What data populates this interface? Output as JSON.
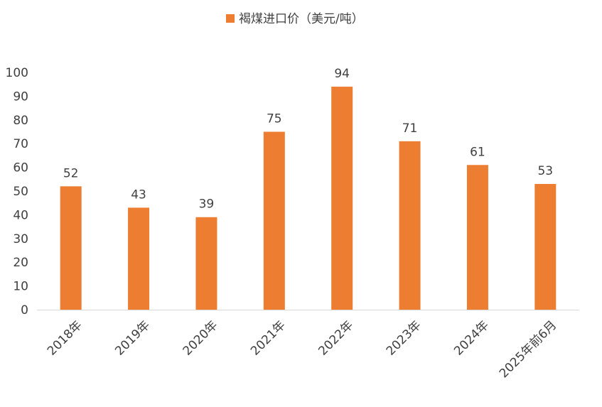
{
  "chart_data": {
    "type": "bar",
    "categories": [
      "2018年",
      "2019年",
      "2020年",
      "2021年",
      "2022年",
      "2023年",
      "2024年",
      "2025年前6月"
    ],
    "series": [
      {
        "name": "褐煤进口价（美元/吨）",
        "values": [
          52,
          43,
          39,
          75,
          94,
          71,
          61,
          53
        ],
        "color": "#ED7D31"
      }
    ],
    "ylim": [
      0,
      100
    ],
    "yticks": [
      0,
      10,
      20,
      30,
      40,
      50,
      60,
      70,
      80,
      90,
      100
    ],
    "grid": false,
    "legend": "top-center",
    "data_labels": true
  }
}
